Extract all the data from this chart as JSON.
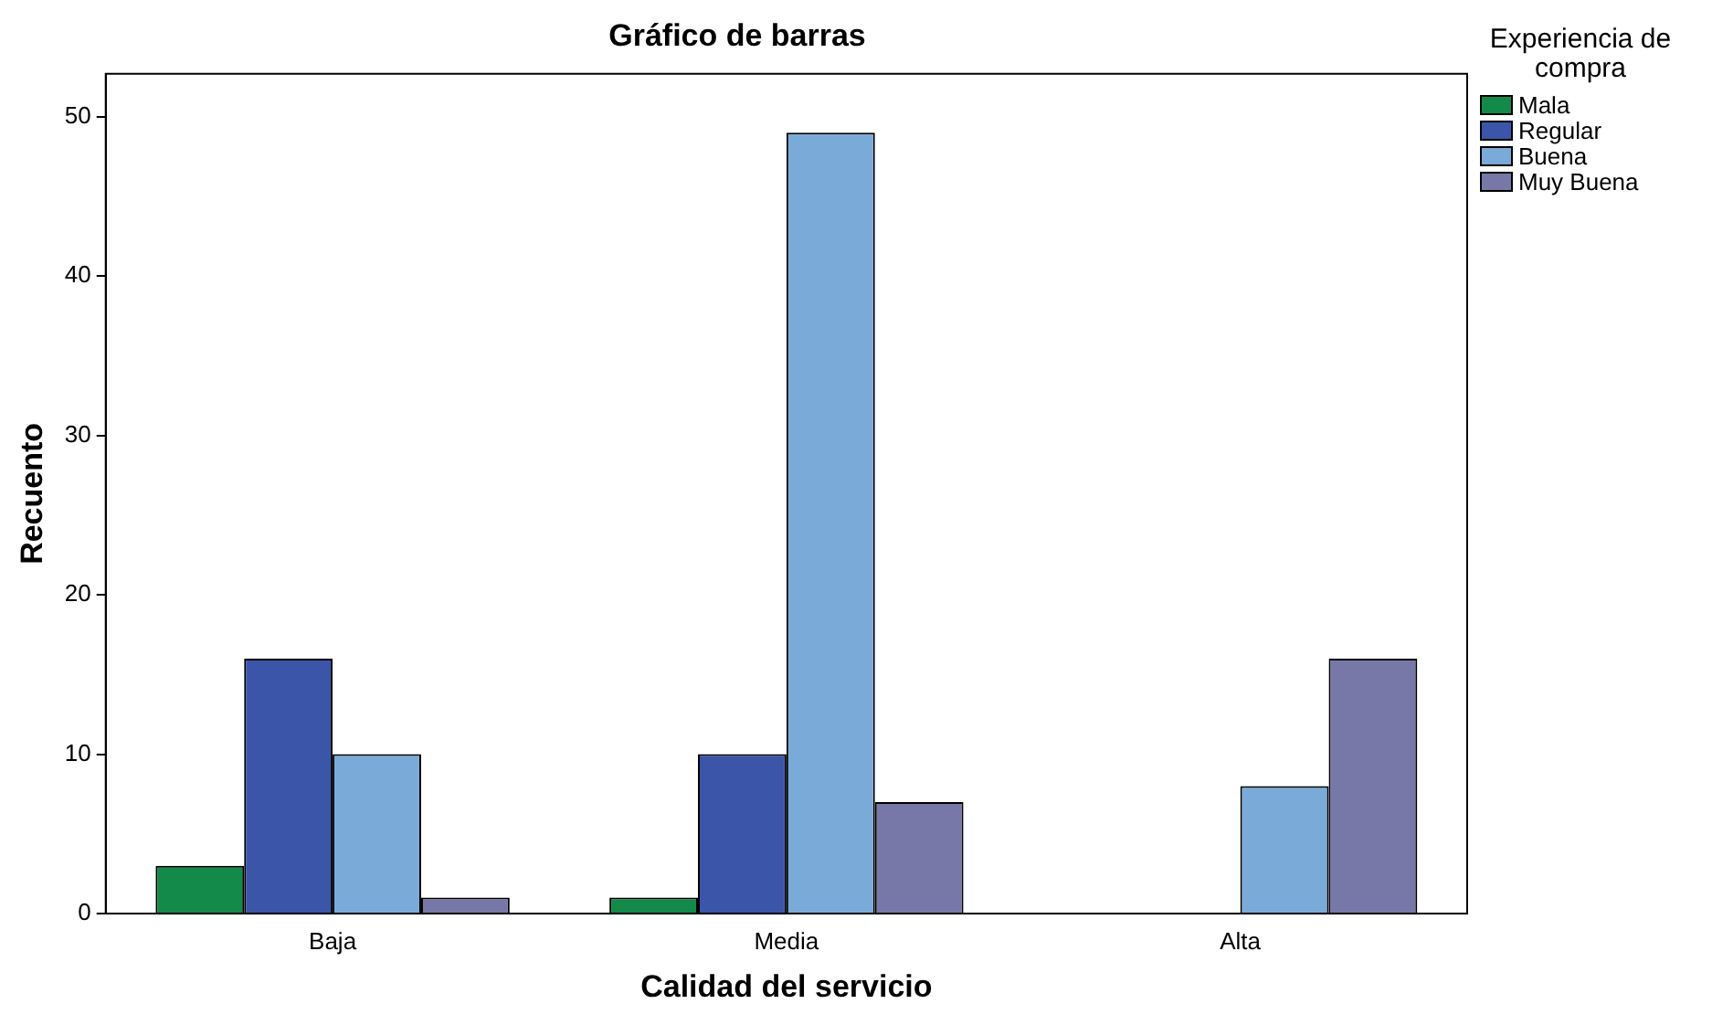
{
  "chart_data": {
    "type": "bar",
    "title": "Gráfico de barras",
    "xlabel": "Calidad del servicio",
    "ylabel": "Recuento",
    "legend_title": "Experiencia de compra",
    "categories": [
      "Baja",
      "Media",
      "Alta"
    ],
    "series": [
      {
        "name": "Mala",
        "color": "#13894a",
        "values": [
          3,
          1,
          null
        ]
      },
      {
        "name": "Regular",
        "color": "#3b56a8",
        "values": [
          16,
          10,
          null
        ]
      },
      {
        "name": "Buena",
        "color": "#7aaad8",
        "values": [
          10,
          49,
          8
        ]
      },
      {
        "name": "Muy Buena",
        "color": "#7878a8",
        "values": [
          1,
          7,
          16
        ]
      }
    ],
    "ylim": [
      0,
      52.7
    ],
    "yticks": [
      0,
      10,
      20,
      30,
      40,
      50
    ],
    "grid": false,
    "legend": "top right"
  }
}
